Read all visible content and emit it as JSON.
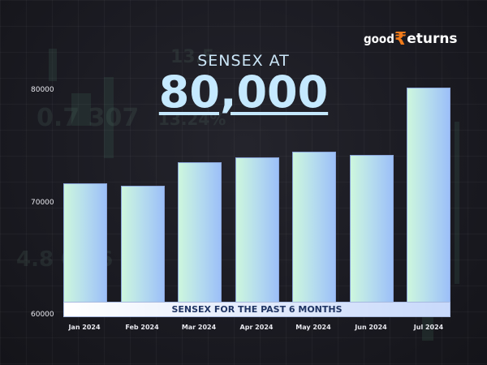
{
  "logo": {
    "prefix": "good",
    "rupee_glyph": "₹",
    "suffix": "eturns",
    "accent_color": "#f07a1a"
  },
  "header": {
    "subtitle": "SENSEX AT",
    "headline": "80,000"
  },
  "banner": {
    "label": "SENSEX FOR THE PAST 6 MONTHS"
  },
  "y_axis": {
    "ticks": [
      "80000",
      "70000",
      "60000"
    ]
  },
  "x_axis": {
    "labels": [
      "Jan 2024",
      "Feb 2024",
      "Mar 2024",
      "Apr 2024",
      "May 2024",
      "Jun 2024",
      "Jul 2024"
    ]
  },
  "chart_data": {
    "type": "bar",
    "title": "SENSEX AT 80,000",
    "subtitle": "SENSEX FOR THE PAST 6 MONTHS",
    "categories": [
      "Jan 2024",
      "Feb 2024",
      "Mar 2024",
      "Apr 2024",
      "May 2024",
      "Jun 2024",
      "Jul 2024"
    ],
    "values": [
      71700,
      71500,
      73600,
      74000,
      74500,
      74200,
      80200
    ],
    "xlabel": "",
    "ylabel": "",
    "ylim": [
      60000,
      80000
    ],
    "yticks": [
      60000,
      70000,
      80000
    ],
    "grid": false,
    "legend": null,
    "bar_gradient": [
      "#cdf7dd",
      "#9cbff8"
    ]
  }
}
